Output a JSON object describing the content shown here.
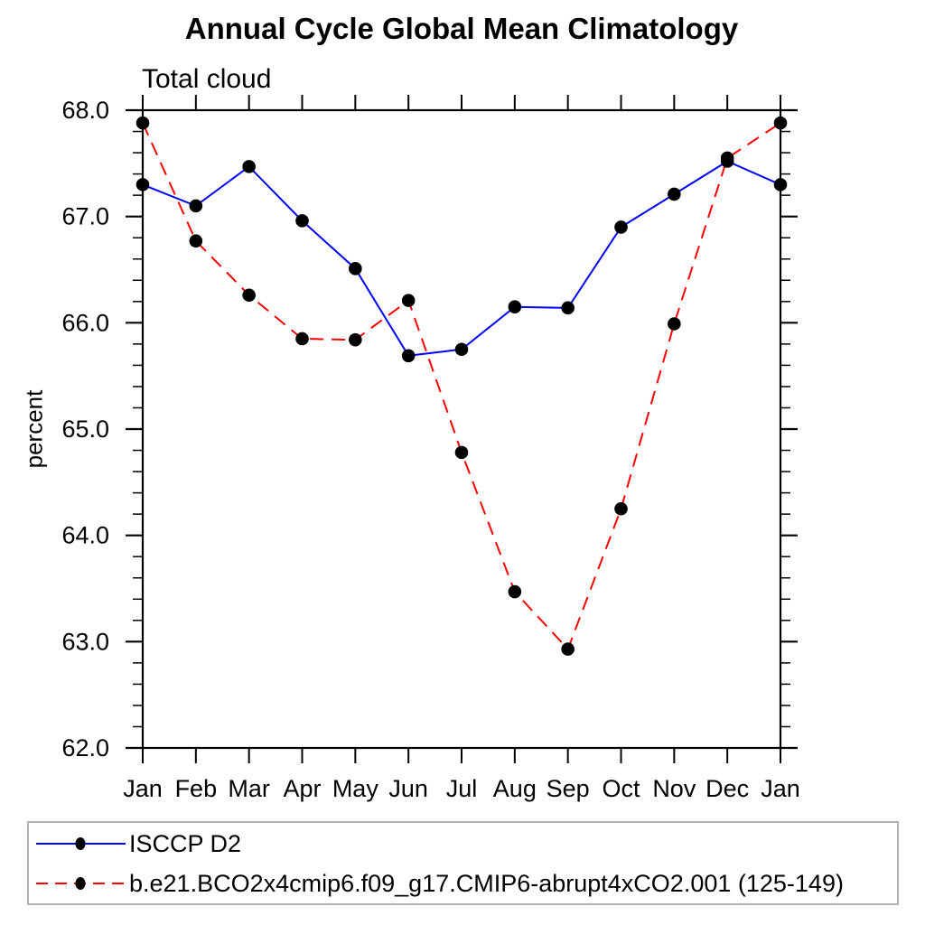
{
  "chart_data": {
    "type": "line",
    "title": "Annual Cycle Global Mean Climatology",
    "subtitle": "Total cloud",
    "ylabel": "percent",
    "xlabel": "",
    "x_categories": [
      "Jan",
      "Feb",
      "Mar",
      "Apr",
      "May",
      "Jun",
      "Jul",
      "Aug",
      "Sep",
      "Oct",
      "Nov",
      "Dec",
      "Jan"
    ],
    "ylim": [
      62.0,
      68.0
    ],
    "ytick_values": [
      62.0,
      63.0,
      64.0,
      65.0,
      66.0,
      67.0,
      68.0
    ],
    "ytick_labels": [
      "62.0",
      "63.0",
      "64.0",
      "65.0",
      "66.0",
      "67.0",
      "68.0"
    ],
    "y_minor_step": 0.2,
    "grid": false,
    "legend_position": "bottom",
    "series": [
      {
        "name": "ISCCP D2",
        "color": "#0000ff",
        "line_style": "solid",
        "marker": "filled-circle",
        "marker_color": "#000000",
        "values": [
          67.3,
          67.1,
          67.47,
          66.96,
          66.51,
          65.69,
          65.75,
          66.15,
          66.14,
          66.9,
          67.21,
          67.52,
          67.3
        ]
      },
      {
        "name": "b.e21.BCO2x4cmip6.f09_g17.CMIP6-abrupt4xCO2.001 (125-149)",
        "color": "#ff0000",
        "line_style": "dashed",
        "marker": "filled-circle",
        "marker_color": "#000000",
        "values": [
          67.88,
          66.77,
          66.26,
          65.85,
          65.84,
          66.21,
          64.78,
          63.47,
          62.93,
          64.25,
          65.99,
          67.55,
          67.88
        ]
      }
    ]
  },
  "colors": {
    "axis": "#000000",
    "text": "#000000",
    "legend_border": "#b2b2b2",
    "background": "#ffffff"
  }
}
